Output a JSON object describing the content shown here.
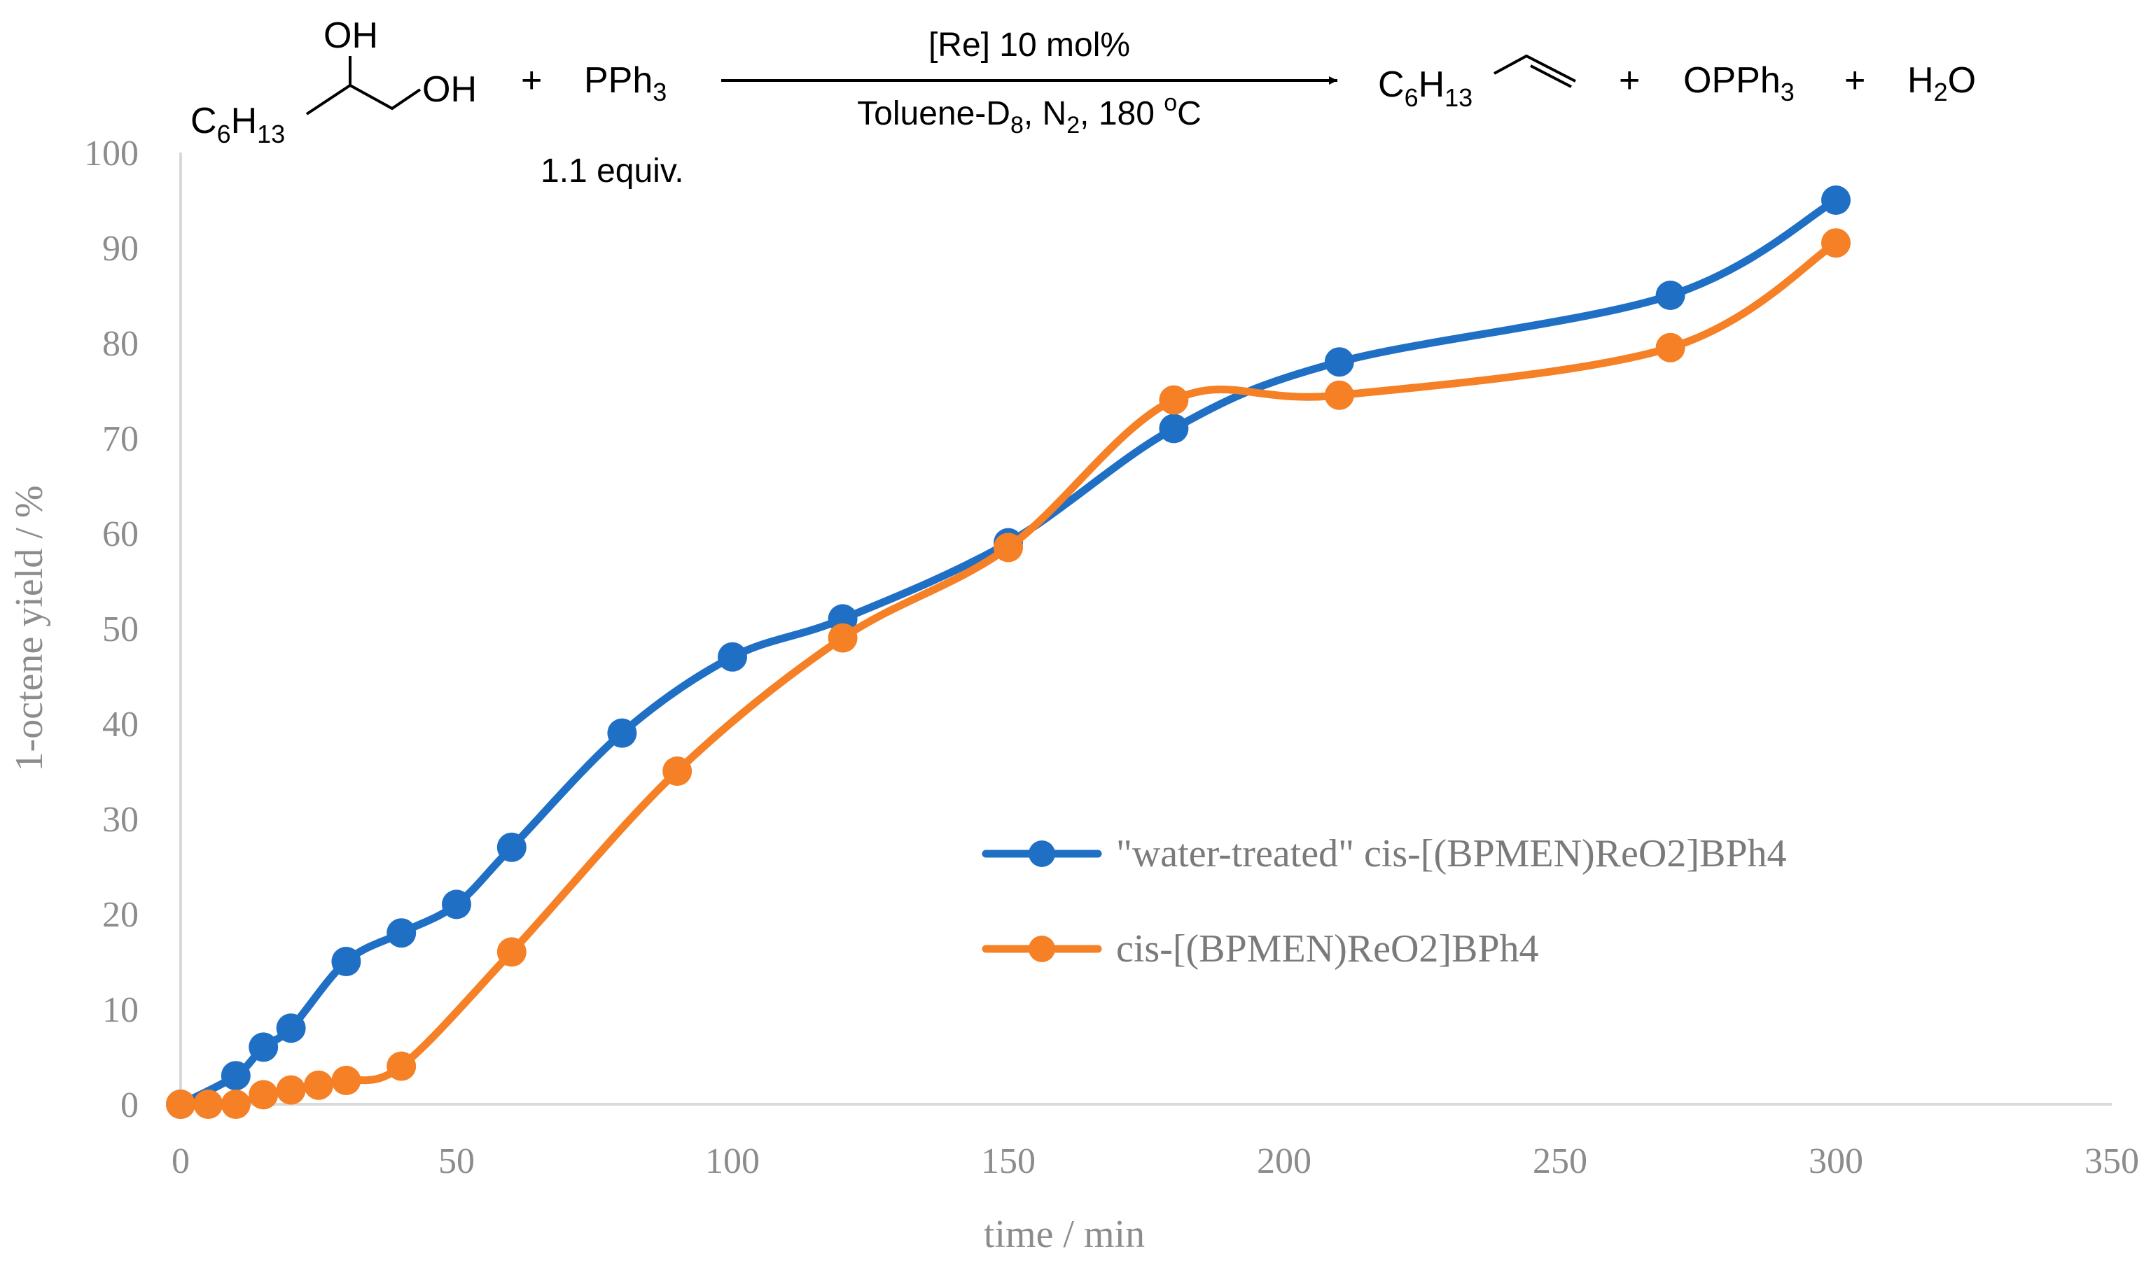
{
  "reaction": {
    "reactant_oh_top": "OH",
    "reactant_oh_right": "OH",
    "reactant_chain": {
      "base": "C",
      "sub1": "6",
      "mid": "H",
      "sub2": "13"
    },
    "plus1": "+",
    "reagent": {
      "base": "PPh",
      "sub": "3"
    },
    "reagent_equiv": "1.1 equiv.",
    "above_arrow": "[Re] 10 mol%",
    "below_arrow": {
      "part1": "Toluene-D",
      "sub1": "8",
      "part2": ", N",
      "sub2": "2",
      "part3": ", 180 ",
      "sup": "o",
      "part4": "C"
    },
    "product_chain": {
      "base": "C",
      "sub1": "6",
      "mid": "H",
      "sub2": "13"
    },
    "plus2": "+",
    "byproduct1": {
      "base": "OPPh",
      "sub": "3"
    },
    "plus3": "+",
    "byproduct2": {
      "base": "H",
      "sub": "2",
      "tail": "O"
    }
  },
  "chart_data": {
    "type": "line",
    "smooth": true,
    "xlabel": "time / min",
    "ylabel": "1-octene yield / %",
    "xlim": [
      0,
      350
    ],
    "ylim": [
      0,
      100
    ],
    "xticks": [
      0,
      50,
      100,
      150,
      200,
      250,
      300,
      350
    ],
    "yticks": [
      0,
      10,
      20,
      30,
      40,
      50,
      60,
      70,
      80,
      90,
      100
    ],
    "grid": false,
    "legend_position": "center-right",
    "series": [
      {
        "name": "\"water-treated\" cis-[(BPMEN)ReO2]BPh4",
        "color": "#1f6fc5",
        "x": [
          0,
          10,
          15,
          20,
          30,
          40,
          50,
          60,
          80,
          100,
          120,
          150,
          180,
          210,
          270,
          300
        ],
        "y": [
          0,
          3,
          6,
          8,
          15,
          18,
          21,
          27,
          39,
          47,
          51,
          59,
          71,
          78,
          85,
          95
        ]
      },
      {
        "name": "cis-[(BPMEN)ReO2]BPh4",
        "color": "#f58025",
        "x": [
          0,
          5,
          10,
          15,
          20,
          25,
          30,
          40,
          60,
          90,
          120,
          150,
          180,
          210,
          270,
          300
        ],
        "y": [
          0,
          0,
          0,
          1,
          1.5,
          2,
          2.5,
          4,
          16,
          35,
          49,
          58.5,
          74,
          74.5,
          79.5,
          90.5
        ]
      }
    ]
  }
}
